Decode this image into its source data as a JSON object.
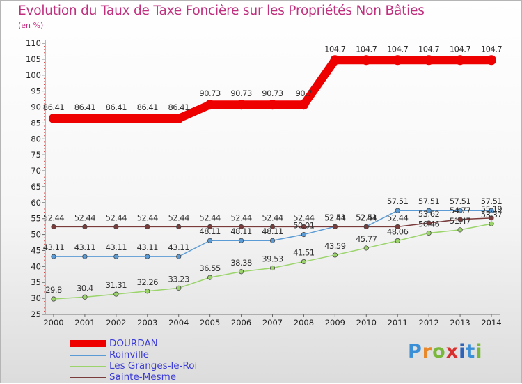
{
  "title": "Evolution du Taux de Taxe Foncière sur les Propriétés Non Bâties",
  "unit_label": "(en %)",
  "brand": {
    "name": "Proxiti",
    "letters": [
      "P",
      "r",
      "o",
      "x",
      "i",
      "t",
      "i"
    ],
    "letter_colors": [
      "#3a8fd6",
      "#e8882a",
      "#79b83b",
      "#d8302f",
      "#2f63b8",
      "#3a8fd6",
      "#79b83b"
    ]
  },
  "chart_data": {
    "type": "line",
    "title": "Evolution du Taux de Taxe Foncière sur les Propriétés Non Bâties",
    "ylabel": "(en %)",
    "xlabel": "",
    "ylim": [
      25,
      110
    ],
    "yticks": [
      25,
      30,
      35,
      40,
      45,
      50,
      55,
      60,
      65,
      70,
      75,
      80,
      85,
      90,
      95,
      100,
      105,
      110
    ],
    "grid": false,
    "legend_position": "bottom-left",
    "x": [
      "2000",
      "2001",
      "2002",
      "2003",
      "2004",
      "2005",
      "2006",
      "2007",
      "2008",
      "2009",
      "2010",
      "2011",
      "2012",
      "2013",
      "2014"
    ],
    "series": [
      {
        "name": "DOURDAN",
        "color": "#ee0000",
        "values": [
          86.41,
          86.41,
          86.41,
          86.41,
          86.41,
          90.73,
          90.73,
          90.73,
          90.73,
          104.7,
          104.7,
          104.7,
          104.7,
          104.7,
          104.7
        ],
        "labels": [
          "86.41",
          "86.41",
          "86.41",
          "86.41",
          "86.41",
          "90.73",
          "90.73",
          "90.73",
          "90.7",
          "104.7",
          "104.7",
          "104.7",
          "104.7",
          "104.7",
          "104.7"
        ]
      },
      {
        "name": "Roinville",
        "color": "#5b9bd5",
        "values": [
          43.11,
          43.11,
          43.11,
          43.11,
          43.11,
          48.11,
          48.11,
          48.11,
          50.01,
          52.51,
          52.51,
          57.51,
          57.51,
          57.51,
          57.51
        ],
        "labels": [
          "43.11",
          "43.11",
          "43.11",
          "43.11",
          "43.11",
          "48.11",
          "48.11",
          "48.11",
          "50.01",
          "52.51",
          "52.51",
          "57.51",
          "57.51",
          "57.51",
          "57.51"
        ]
      },
      {
        "name": "Les Granges-le-Roi",
        "color": "#9bd46b",
        "values": [
          29.8,
          30.4,
          31.31,
          32.26,
          33.23,
          36.55,
          38.38,
          39.53,
          41.51,
          43.59,
          45.77,
          48.06,
          50.46,
          51.47,
          53.37
        ],
        "labels": [
          "29.8",
          "30.4",
          "31.31",
          "32.26",
          "33.23",
          "36.55",
          "38.38",
          "39.53",
          "41.51",
          "43.59",
          "45.77",
          "48.06",
          "50.46",
          "51.47",
          "53.37"
        ]
      },
      {
        "name": "Sainte-Mesme",
        "color": "#7a3b3b",
        "values": [
          52.44,
          52.44,
          52.44,
          52.44,
          52.44,
          52.44,
          52.44,
          52.44,
          52.44,
          52.44,
          52.44,
          52.44,
          53.62,
          54.77,
          55.19
        ],
        "labels": [
          "52.44",
          "52.44",
          "52.44",
          "52.44",
          "52.44",
          "52.44",
          "52.44",
          "52.44",
          "52.44",
          "52.44",
          "52.44",
          "52.44",
          "53.62",
          "54.77",
          "55.19"
        ]
      }
    ]
  }
}
